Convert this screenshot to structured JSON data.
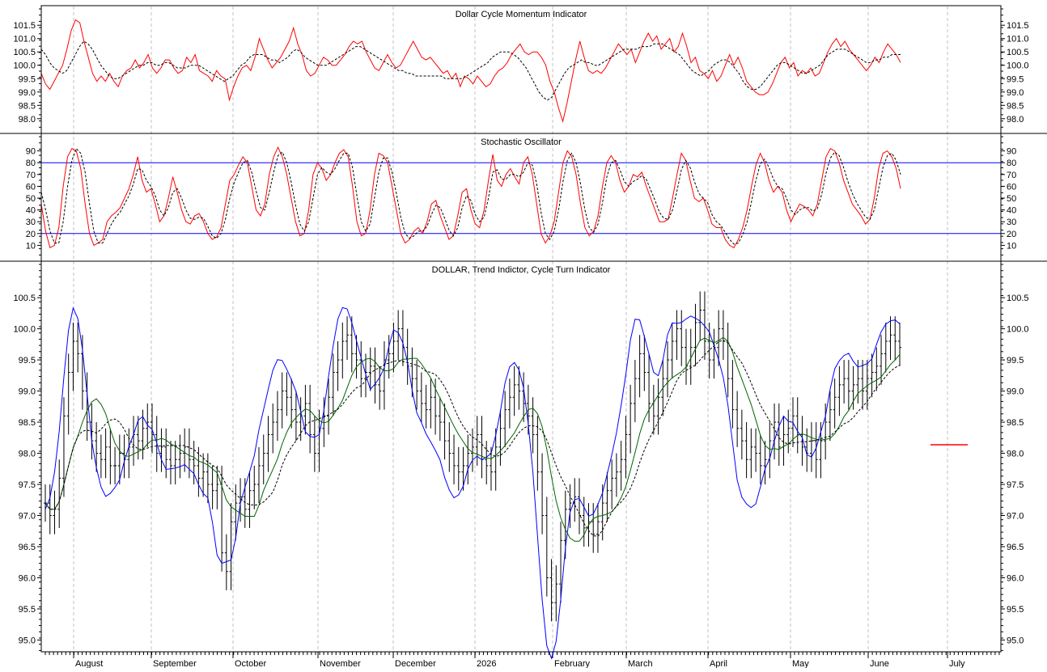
{
  "chart_data": [
    {
      "type": "line",
      "title": "Dollar Cycle Momentum Indicator",
      "ylim": [
        97.6,
        101.9
      ],
      "yticks": [
        "98.0",
        "98.5",
        "99.0",
        "99.5",
        "100.0",
        "100.5",
        "101.0",
        "101.5"
      ],
      "series": [
        {
          "color": "#ff0000",
          "dash": false,
          "values": [
            99.7,
            99.3,
            99.1,
            99.4,
            99.7,
            100.0,
            100.6,
            101.3,
            101.7,
            101.6,
            100.9,
            100.3,
            99.7,
            99.4,
            99.6,
            99.4,
            99.7,
            99.4,
            99.2,
            99.6,
            99.8,
            99.9,
            100.2,
            99.9,
            100.1,
            100.4,
            99.9,
            99.7,
            99.9,
            100.2,
            100.2,
            99.9,
            99.7,
            99.8,
            100.3,
            100.1,
            100.4,
            99.8,
            99.7,
            99.6,
            99.4,
            99.8,
            99.6,
            99.5,
            98.7,
            99.2,
            99.6,
            99.9,
            100.0,
            99.8,
            100.3,
            101.0,
            100.6,
            100.2,
            99.9,
            100.1,
            100.3,
            100.6,
            100.9,
            101.4,
            100.8,
            100.4,
            99.8,
            99.6,
            99.7,
            100.0,
            100.3,
            100.2,
            100.0,
            100.0,
            100.2,
            100.4,
            100.7,
            100.9,
            100.8,
            100.9,
            100.5,
            100.2,
            99.9,
            99.8,
            100.1,
            100.4,
            100.1,
            99.9,
            100.0,
            100.3,
            100.6,
            100.9,
            100.6,
            100.3,
            100.2,
            100.3,
            100.1,
            99.9,
            99.7,
            99.8,
            99.5,
            99.7,
            99.2,
            99.6,
            99.5,
            99.3,
            99.6,
            99.4,
            99.2,
            99.3,
            99.6,
            99.8,
            99.9,
            100.1,
            100.4,
            100.6,
            100.8,
            100.5,
            100.4,
            100.5,
            100.5,
            100.3,
            100.0,
            99.4,
            99.0,
            98.4,
            97.9,
            98.6,
            99.4,
            100.2,
            100.9,
            100.3,
            99.8,
            99.7,
            99.8,
            99.7,
            99.9,
            100.2,
            100.5,
            100.8,
            100.6,
            100.4,
            100.6,
            100.1,
            100.5,
            100.9,
            101.2,
            100.9,
            101.1,
            100.6,
            100.8,
            101.0,
            100.5,
            100.7,
            101.2,
            100.7,
            100.1,
            100.3,
            99.8,
            99.7,
            99.5,
            99.8,
            99.4,
            99.6,
            100.0,
            100.4,
            100.0,
            100.3,
            99.9,
            99.4,
            99.2,
            99.0,
            98.9,
            98.9,
            99.0,
            99.3,
            99.7,
            100.1,
            100.3,
            99.9,
            100.1,
            99.6,
            99.8,
            99.7,
            99.9,
            99.6,
            99.7,
            100.1,
            100.5,
            100.8,
            101.0,
            100.7,
            100.9,
            100.6,
            100.4,
            100.2,
            100.0,
            99.8,
            100.0,
            100.3,
            100.1,
            100.5,
            100.8,
            100.6,
            100.4,
            100.1
          ]
        },
        {
          "color": "#000000",
          "dash": true,
          "values": [
            100.6,
            100.4,
            100.1,
            99.9,
            99.8,
            99.7,
            99.8,
            100.1,
            100.4,
            100.7,
            100.9,
            100.8,
            100.6,
            100.3,
            100.0,
            99.8,
            99.6,
            99.5,
            99.5,
            99.6,
            99.7,
            99.8,
            99.9,
            100.0,
            100.0,
            100.1,
            100.1,
            100.0,
            100.0,
            100.1,
            100.1,
            100.0,
            99.9,
            99.9,
            99.9,
            100.0,
            100.0,
            100.0,
            99.9,
            99.8,
            99.7,
            99.6,
            99.5,
            99.4,
            99.5,
            99.6,
            99.8,
            100.0,
            100.1,
            100.3,
            100.4,
            100.4,
            100.4,
            100.3,
            100.2,
            100.2,
            100.1,
            100.2,
            100.3,
            100.5,
            100.6,
            100.5,
            100.3,
            100.2,
            100.1,
            100.0,
            100.0,
            100.0,
            100.1,
            100.2,
            100.3,
            100.4,
            100.5,
            100.6,
            100.7,
            100.7,
            100.6,
            100.5,
            100.4,
            100.3,
            100.2,
            100.1,
            100.0,
            99.9,
            99.8,
            99.8,
            99.7,
            99.7,
            99.6,
            99.6,
            99.6,
            99.6,
            99.6,
            99.6,
            99.6,
            99.5,
            99.5,
            99.5,
            99.5,
            99.5,
            99.6,
            99.7,
            99.8,
            99.9,
            100.0,
            100.1,
            100.3,
            100.4,
            100.5,
            100.5,
            100.5,
            100.4,
            100.3,
            100.1,
            99.9,
            99.6,
            99.3,
            99.0,
            98.8,
            98.7,
            98.8,
            99.1,
            99.4,
            99.7,
            99.9,
            100.0,
            100.1,
            100.2,
            100.1,
            100.1,
            100.0,
            100.0,
            100.1,
            100.2,
            100.3,
            100.4,
            100.5,
            100.6,
            100.6,
            100.6,
            100.6,
            100.7,
            100.7,
            100.7,
            100.8,
            100.8,
            100.8,
            100.7,
            100.6,
            100.5,
            100.4,
            100.2,
            100.0,
            99.8,
            99.7,
            99.6,
            99.7,
            99.8,
            100.0,
            100.1,
            100.2,
            100.2,
            100.1,
            99.9,
            99.7,
            99.4,
            99.2,
            99.1,
            99.1,
            99.2,
            99.4,
            99.6,
            99.8,
            100.0,
            100.1,
            100.1,
            100.0,
            99.9,
            99.8,
            99.7,
            99.7,
            99.8,
            99.9,
            100.0,
            100.2,
            100.4,
            100.5,
            100.6,
            100.6,
            100.6,
            100.5,
            100.4,
            100.3,
            100.2,
            100.1,
            100.1,
            100.2,
            100.2,
            100.3,
            100.3,
            100.4,
            100.4,
            100.4
          ]
        }
      ]
    },
    {
      "type": "line",
      "title": "Stochastic Oscillator",
      "ylim": [
        0,
        100
      ],
      "yticks": [
        "10",
        "20",
        "30",
        "40",
        "50",
        "60",
        "70",
        "80",
        "90"
      ],
      "reference_lines": [
        80,
        20
      ],
      "series": [
        {
          "color": "#ff0000",
          "dash": false,
          "values": [
            45,
            22,
            8,
            10,
            25,
            60,
            85,
            92,
            90,
            75,
            45,
            20,
            10,
            12,
            15,
            30,
            35,
            38,
            42,
            50,
            58,
            70,
            85,
            65,
            55,
            58,
            45,
            30,
            35,
            50,
            68,
            55,
            40,
            30,
            28,
            35,
            37,
            30,
            20,
            15,
            17,
            25,
            45,
            65,
            70,
            78,
            85,
            80,
            60,
            40,
            35,
            45,
            70,
            85,
            93,
            85,
            70,
            50,
            30,
            18,
            20,
            40,
            70,
            80,
            75,
            65,
            70,
            80,
            88,
            91,
            85,
            60,
            30,
            18,
            20,
            40,
            70,
            88,
            86,
            80,
            60,
            40,
            20,
            12,
            15,
            22,
            25,
            20,
            30,
            45,
            48,
            35,
            25,
            15,
            18,
            35,
            55,
            58,
            40,
            28,
            25,
            40,
            65,
            87,
            65,
            60,
            70,
            75,
            68,
            62,
            80,
            85,
            70,
            45,
            20,
            12,
            18,
            30,
            55,
            80,
            90,
            85,
            70,
            45,
            25,
            18,
            22,
            35,
            60,
            80,
            86,
            80,
            65,
            55,
            60,
            70,
            68,
            72,
            60,
            50,
            40,
            30,
            30,
            32,
            50,
            70,
            88,
            82,
            65,
            50,
            47,
            50,
            40,
            28,
            25,
            25,
            15,
            10,
            8,
            15,
            25,
            40,
            60,
            78,
            88,
            80,
            65,
            55,
            60,
            55,
            40,
            30,
            38,
            45,
            43,
            40,
            35,
            45,
            65,
            85,
            92,
            90,
            80,
            65,
            55,
            45,
            40,
            35,
            28,
            32,
            50,
            75,
            88,
            90,
            85,
            75,
            58
          ]
        },
        {
          "color": "#000000",
          "dash": true,
          "values": [
            55,
            40,
            22,
            12,
            12,
            30,
            60,
            82,
            92,
            88,
            72,
            45,
            22,
            12,
            12,
            20,
            28,
            34,
            38,
            45,
            52,
            62,
            75,
            74,
            65,
            60,
            52,
            40,
            35,
            42,
            55,
            58,
            50,
            40,
            33,
            32,
            34,
            33,
            26,
            18,
            16,
            20,
            32,
            50,
            63,
            72,
            80,
            82,
            72,
            56,
            42,
            40,
            55,
            72,
            86,
            89,
            80,
            64,
            44,
            28,
            22,
            30,
            50,
            70,
            76,
            72,
            70,
            75,
            82,
            88,
            88,
            76,
            52,
            30,
            22,
            28,
            50,
            72,
            84,
            84,
            72,
            54,
            34,
            20,
            16,
            18,
            22,
            22,
            26,
            36,
            44,
            42,
            33,
            23,
            18,
            25,
            42,
            52,
            48,
            36,
            30,
            34,
            50,
            72,
            74,
            66,
            66,
            70,
            70,
            68,
            72,
            80,
            78,
            62,
            38,
            20,
            15,
            22,
            40,
            64,
            82,
            88,
            80,
            62,
            40,
            25,
            21,
            28,
            46,
            68,
            80,
            82,
            74,
            64,
            60,
            64,
            66,
            69,
            66,
            57,
            48,
            38,
            33,
            32,
            40,
            56,
            74,
            82,
            76,
            64,
            54,
            50,
            46,
            36,
            30,
            27,
            21,
            15,
            11,
            12,
            19,
            30,
            47,
            65,
            79,
            83,
            76,
            66,
            60,
            58,
            50,
            40,
            36,
            40,
            42,
            42,
            39,
            41,
            53,
            71,
            84,
            89,
            86,
            76,
            64,
            54,
            46,
            40,
            34,
            32,
            40,
            58,
            76,
            86,
            88,
            82,
            70
          ]
        }
      ]
    },
    {
      "type": "ohlc",
      "title": "DOLLAR, Trend Indictor, Cycle Turn Indicator",
      "ylim": [
        94.85,
        100.8
      ],
      "yticks": [
        "95.0",
        "95.5",
        "96.0",
        "96.5",
        "97.0",
        "97.5",
        "98.0",
        "98.5",
        "99.0",
        "99.5",
        "100.0",
        "100.5"
      ],
      "xlabels": [
        "August",
        "September",
        "October",
        "November",
        "December",
        "2026",
        "February",
        "March",
        "April",
        "May",
        "June",
        "July"
      ],
      "closes": [
        97.2,
        97.0,
        97.1,
        97.6,
        98.6,
        99.3,
        99.8,
        99.6,
        99.0,
        98.5,
        98.2,
        98.0,
        97.9,
        98.1,
        97.8,
        97.8,
        98.0,
        97.9,
        98.1,
        98.3,
        98.2,
        98.4,
        98.5,
        98.3,
        98.0,
        98.1,
        97.9,
        97.8,
        97.9,
        98.0,
        98.1,
        97.9,
        97.8,
        97.6,
        97.7,
        97.5,
        97.4,
        97.5,
        96.4,
        96.1,
        96.9,
        97.2,
        97.3,
        97.1,
        97.4,
        97.5,
        97.8,
        98.0,
        98.3,
        98.5,
        98.7,
        99.0,
        98.9,
        98.7,
        98.5,
        98.6,
        98.8,
        98.3,
        98.0,
        98.4,
        98.6,
        98.9,
        99.3,
        99.5,
        99.8,
        99.9,
        99.6,
        99.5,
        99.2,
        99.3,
        99.4,
        99.1,
        99.0,
        99.5,
        99.6,
        99.8,
        100.0,
        99.7,
        99.4,
        99.2,
        99.0,
        98.8,
        98.7,
        98.9,
        98.6,
        98.5,
        98.2,
        98.0,
        97.8,
        97.7,
        97.8,
        98.0,
        98.1,
        98.3,
        97.9,
        97.8,
        97.7,
        98.1,
        98.4,
        98.7,
        98.9,
        99.1,
        99.0,
        98.8,
        98.6,
        98.3,
        97.7,
        97.0,
        96.0,
        95.6,
        95.9,
        96.6,
        97.1,
        97.2,
        97.3,
        97.0,
        96.8,
        96.9,
        96.7,
        96.9,
        97.2,
        97.4,
        97.6,
        97.7,
        97.9,
        98.3,
        98.8,
        99.2,
        99.6,
        99.3,
        98.8,
        98.6,
        98.9,
        99.2,
        99.5,
        99.8,
        100.0,
        99.7,
        99.4,
        99.7,
        100.1,
        100.3,
        99.8,
        99.5,
        99.7,
        100.0,
        99.8,
        99.2,
        98.7,
        98.4,
        98.2,
        97.9,
        98.1,
        98.0,
        97.8,
        97.9,
        98.2,
        98.5,
        98.1,
        98.3,
        98.4,
        98.6,
        98.3,
        98.1,
        98.0,
        98.2,
        97.9,
        98.2,
        98.5,
        98.7,
        98.9,
        99.1,
        99.2,
        99.0,
        99.1,
        99.2,
        99.0,
        99.2,
        99.3,
        99.4,
        99.6,
        99.8,
        99.9,
        99.8,
        99.7
      ]
    }
  ]
}
